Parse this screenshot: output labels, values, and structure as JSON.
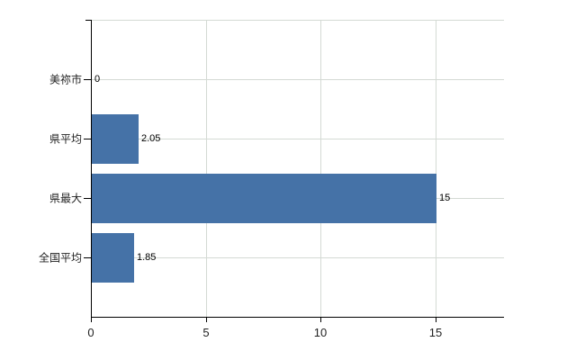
{
  "chart_data": {
    "type": "bar",
    "orientation": "horizontal",
    "title": "",
    "xlabel": "",
    "ylabel": "",
    "categories": [
      "美祢市",
      "県平均",
      "県最大",
      "全国平均"
    ],
    "values": [
      0,
      2.05,
      15,
      1.85
    ],
    "value_labels": [
      "0",
      "2.05",
      "15",
      "1.85"
    ],
    "x_ticks": [
      0,
      5,
      10,
      15
    ],
    "x_tick_labels": [
      "0",
      "5",
      "10",
      "15"
    ],
    "xlim": [
      0,
      18
    ],
    "grid": true,
    "legend": false,
    "colors": {
      "bar": "#4572a7",
      "axis": "#000000",
      "gridline": "#d4dad4",
      "top_border": "#d4dad4",
      "category_text": "#222222",
      "value_text": "#000000",
      "background": "#ffffff"
    }
  }
}
